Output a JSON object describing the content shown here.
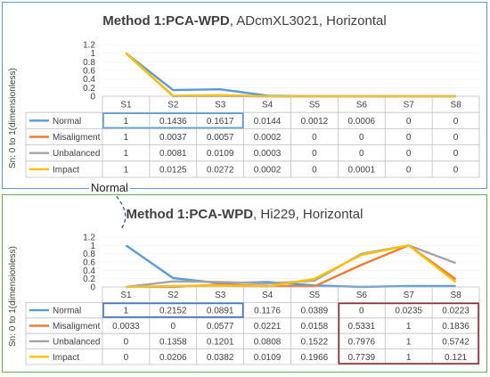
{
  "callout_label": "Normal",
  "colors": {
    "Normal": "#5b9bd5",
    "Misaligment": "#ed7d31",
    "Unbalanced": "#a5a5a5",
    "Impact": "#ffc000"
  },
  "chart_data": [
    {
      "type": "line",
      "title_bold": "Method 1:PCA-WPD",
      "title_rest": ", ADcmXL3021, Horizontal",
      "ylabel": "Sn: 0 to 1(dimensionless)",
      "yticks": [
        "0",
        "0.2",
        "0.4",
        "0.6",
        "0.8",
        "1",
        "1.2"
      ],
      "ylim": [
        0,
        1.2
      ],
      "categories": [
        "S1",
        "S2",
        "S3",
        "S4",
        "S5",
        "S6",
        "S7",
        "S8"
      ],
      "series": [
        {
          "name": "Normal",
          "values": [
            1,
            0.1436,
            0.1617,
            0.0144,
            0.0012,
            0.0006,
            0,
            0
          ],
          "labels": [
            "1",
            "0.1436",
            "0.1617",
            "0.0144",
            "0.0012",
            "0.0006",
            "0",
            "0"
          ]
        },
        {
          "name": "Misaligment",
          "values": [
            1,
            0.0037,
            0.0057,
            0.0002,
            0,
            0,
            0,
            0
          ],
          "labels": [
            "1",
            "0.0037",
            "0.0057",
            "0.0002",
            "0",
            "0",
            "0",
            "0"
          ]
        },
        {
          "name": "Unbalanced",
          "values": [
            1,
            0.0081,
            0.0109,
            0.0003,
            0,
            0,
            0,
            0
          ],
          "labels": [
            "1",
            "0.0081",
            "0.0109",
            "0.0003",
            "0",
            "0",
            "0",
            "0"
          ]
        },
        {
          "name": "Impact",
          "values": [
            1,
            0.0125,
            0.0272,
            0.0002,
            0,
            0.0001,
            0,
            0
          ],
          "labels": [
            "1",
            "0.0125",
            "0.0272",
            "0.0002",
            "0",
            "0.0001",
            "0",
            "0"
          ]
        }
      ]
    },
    {
      "type": "line",
      "title_bold": "Method 1:PCA-WPD",
      "title_rest": ", Hi229, Horizontal",
      "ylabel": "Sn: 0 to 1(dimensionless)",
      "yticks": [
        "0",
        "0.2",
        "0.4",
        "0.6",
        "0.8",
        "1",
        "1.2"
      ],
      "ylim": [
        0,
        1.2
      ],
      "categories": [
        "S1",
        "S2",
        "S3",
        "S4",
        "S5",
        "S6",
        "S7",
        "S8"
      ],
      "series": [
        {
          "name": "Normal",
          "values": [
            1,
            0.2152,
            0.0891,
            0.1176,
            0.0389,
            0,
            0.0235,
            0.0223
          ],
          "labels": [
            "1",
            "0.2152",
            "0.0891",
            "0.1176",
            "0.0389",
            "0",
            "0.0235",
            "0.0223"
          ]
        },
        {
          "name": "Misaligment",
          "values": [
            0.0033,
            0,
            0.0577,
            0.0221,
            0.0158,
            0.5331,
            1,
            0.1836
          ],
          "labels": [
            "0.0033",
            "0",
            "0.0577",
            "0.0221",
            "0.0158",
            "0.5331",
            "1",
            "0.1836"
          ]
        },
        {
          "name": "Unbalanced",
          "values": [
            0,
            0.1358,
            0.1201,
            0.0808,
            0.1522,
            0.7976,
            1,
            0.5742
          ],
          "labels": [
            "0",
            "0.1358",
            "0.1201",
            "0.0808",
            "0.1522",
            "0.7976",
            "1",
            "0.5742"
          ]
        },
        {
          "name": "Impact",
          "values": [
            0,
            0.0206,
            0.0382,
            0.0109,
            0.1966,
            0.7739,
            1,
            0.121
          ],
          "labels": [
            "0",
            "0.0206",
            "0.0382",
            "0.0109",
            "0.1966",
            "0.7739",
            "1",
            "0.121"
          ]
        }
      ]
    }
  ]
}
